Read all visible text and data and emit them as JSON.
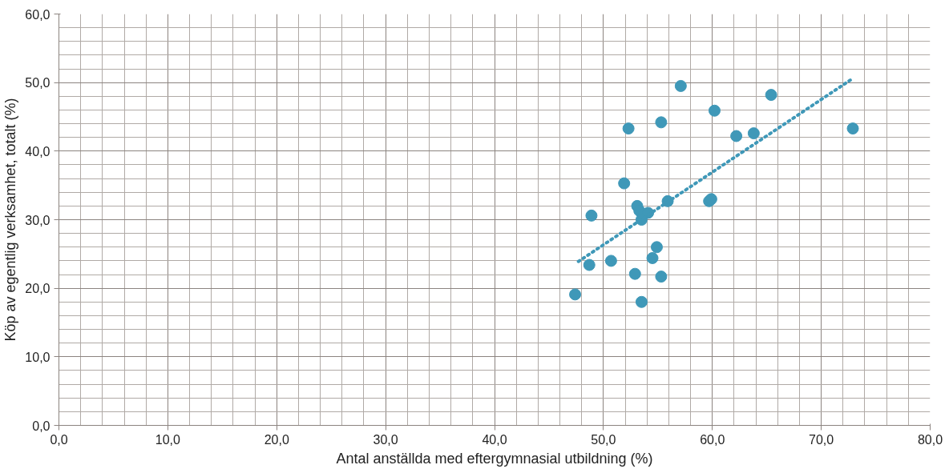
{
  "chart_data": {
    "type": "scatter",
    "xlabel": "Antal anställda med eftergymnasial utbildning (%)",
    "ylabel": "Köp av egentlig verksamhet, totalt (%)",
    "x": [
      57.1,
      65.4,
      60.2,
      55.3,
      52.3,
      72.9,
      62.2,
      63.8,
      51.9,
      48.9,
      53.1,
      53.3,
      54.1,
      53.5,
      55.9,
      59.7,
      59.9,
      54.9,
      54.5,
      50.7,
      48.7,
      52.9,
      55.3,
      47.4,
      53.5
    ],
    "series": [
      {
        "color": "#3f98b8",
        "marker": "circle",
        "values": [
          49.5,
          48.2,
          45.9,
          44.2,
          43.3,
          43.3,
          42.2,
          42.6,
          35.3,
          30.6,
          32.0,
          31.3,
          31.0,
          30.0,
          32.7,
          32.7,
          33.0,
          26.0,
          24.4,
          24.0,
          23.4,
          22.1,
          21.7,
          19.1,
          18.0
        ]
      },
      {
        "type": "line",
        "color": "#3f98b8",
        "line_style": "dotted",
        "x": [
          47.7,
          72.8
        ],
        "values": [
          23.9,
          50.5
        ]
      }
    ],
    "xlim": [
      0,
      80
    ],
    "ylim": [
      0,
      60
    ],
    "xticks": [
      {
        "value": 0,
        "label": "0,0"
      },
      {
        "value": 10,
        "label": "10,0"
      },
      {
        "value": 20,
        "label": "20,0"
      },
      {
        "value": 30,
        "label": "30,0"
      },
      {
        "value": 40,
        "label": "40,0"
      },
      {
        "value": 50,
        "label": "50,0"
      },
      {
        "value": 60,
        "label": "60,0"
      },
      {
        "value": 70,
        "label": "70,0"
      },
      {
        "value": 80,
        "label": "80,0"
      }
    ],
    "yticks": [
      {
        "value": 0,
        "label": "0,0"
      },
      {
        "value": 10,
        "label": "10,0"
      },
      {
        "value": 20,
        "label": "20,0"
      },
      {
        "value": 30,
        "label": "30,0"
      },
      {
        "value": 40,
        "label": "40,0"
      },
      {
        "value": 50,
        "label": "50,0"
      },
      {
        "value": 60,
        "label": "60,0"
      }
    ],
    "grid": true
  }
}
